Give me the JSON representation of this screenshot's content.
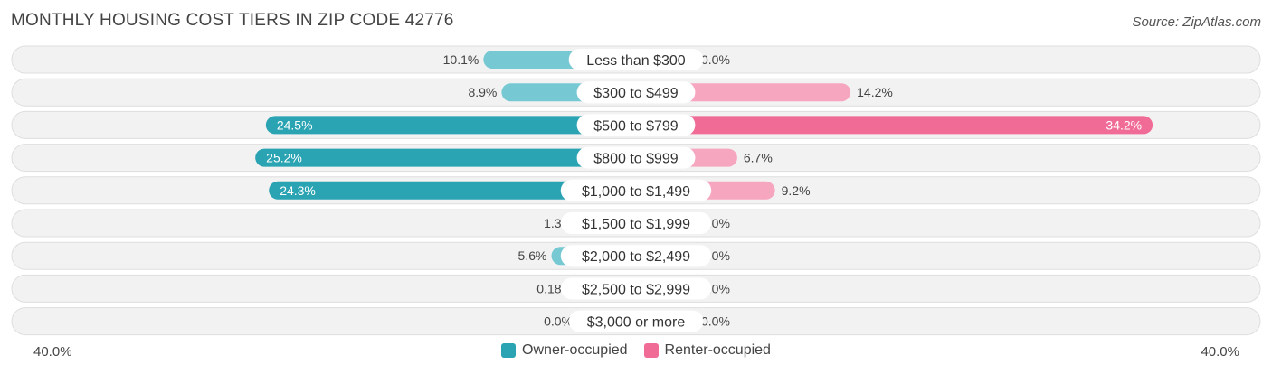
{
  "header": {
    "title": "MONTHLY HOUSING COST TIERS IN ZIP CODE 42776",
    "source": "Source: ZipAtlas.com"
  },
  "colors": {
    "owner_strong": "#2aa3b3",
    "owner_light": "#76c9d2",
    "renter_strong": "#f06b96",
    "renter_light": "#f7a6c0",
    "row_bg": "#f2f2f2",
    "row_border": "#dedede"
  },
  "axis": {
    "left_label": "40.0%",
    "right_label": "40.0%"
  },
  "legend": {
    "owner_label": "Owner-occupied",
    "renter_label": "Renter-occupied"
  },
  "chart_data": {
    "type": "bar",
    "orientation": "diverging-horizontal",
    "title": "MONTHLY HOUSING COST TIERS IN ZIP CODE 42776",
    "categories": [
      "Less than $300",
      "$300 to $499",
      "$500 to $799",
      "$800 to $999",
      "$1,000 to $1,499",
      "$1,500 to $1,999",
      "$2,000 to $2,499",
      "$2,500 to $2,999",
      "$3,000 or more"
    ],
    "series": [
      {
        "name": "Owner-occupied",
        "values": [
          10.1,
          8.9,
          24.5,
          25.2,
          24.3,
          1.3,
          5.6,
          0.18,
          0.0
        ],
        "labels": [
          "10.1%",
          "8.9%",
          "24.5%",
          "25.2%",
          "24.3%",
          "1.3%",
          "5.6%",
          "0.18%",
          "0.0%"
        ]
      },
      {
        "name": "Renter-occupied",
        "values": [
          0.0,
          14.2,
          34.2,
          6.7,
          9.2,
          0.0,
          0.0,
          0.0,
          0.0
        ],
        "labels": [
          "0.0%",
          "14.2%",
          "34.2%",
          "6.7%",
          "9.2%",
          "0.0%",
          "0.0%",
          "0.0%",
          "0.0%"
        ]
      }
    ],
    "xlim": [
      -40,
      40
    ],
    "legend_position": "bottom-center"
  }
}
